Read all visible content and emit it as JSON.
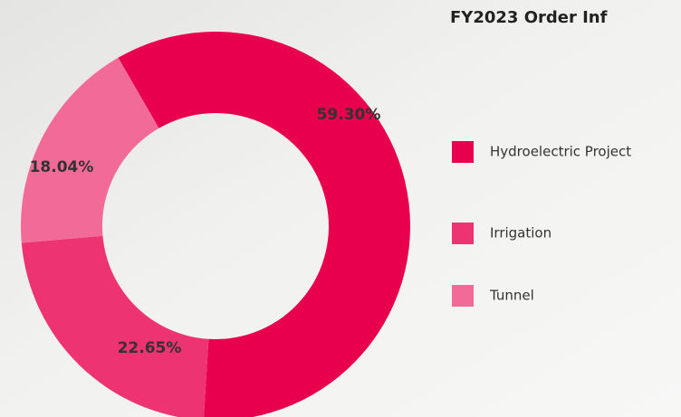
{
  "chart_data": {
    "type": "donut",
    "title": "FY2023 Order Inf",
    "categories": [
      "Hydroelectric Project",
      "Irrigation",
      "Tunnel"
    ],
    "values": [
      59.3,
      22.65,
      18.04
    ],
    "value_labels": [
      "59.30%",
      "22.65%",
      "18.04%"
    ],
    "colors": [
      "#e8004f",
      "#ee3372",
      "#f26b98"
    ]
  }
}
